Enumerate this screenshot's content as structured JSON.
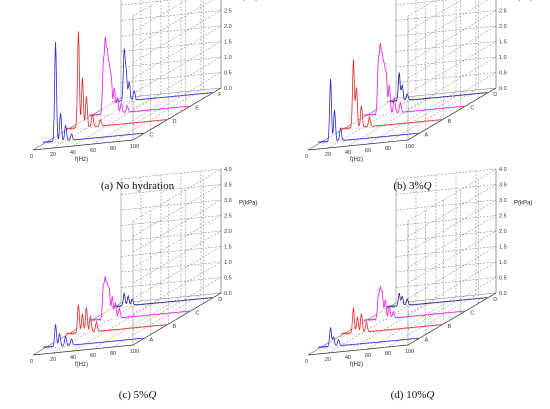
{
  "figure": {
    "z_axis_label": "P(kPa)",
    "x_axis_label": "f(Hz)",
    "z_ticks": [
      "0.0",
      "0.5",
      "1.0",
      "1.5",
      "2.0",
      "2.5",
      "3.0",
      "3.5",
      "4.0"
    ],
    "x_ticks": [
      "0",
      "20",
      "40",
      "60",
      "80",
      "100"
    ],
    "colors": {
      "blue": "#2a2ad8",
      "red": "#e22828",
      "magenta": "#e619e6",
      "navy": "#1c1c8c",
      "grid": "#777777"
    }
  },
  "chart_data": [
    {
      "type": "line",
      "panel": "a",
      "caption_prefix": "(a) No hydration",
      "caption_q": "",
      "xlabel": "f(Hz)",
      "zlabel": "P(kPa)",
      "zlim": [
        0,
        4.0
      ],
      "xlim": [
        0,
        100
      ],
      "series": [
        {
          "name": "C",
          "color": "blue",
          "peaks": [
            [
              12,
              3.2
            ],
            [
              17,
              0.9
            ],
            [
              22,
              0.5
            ],
            [
              28,
              0.2
            ]
          ]
        },
        {
          "name": "D",
          "color": "red",
          "peaks": [
            [
              12,
              3.1
            ],
            [
              16,
              1.6
            ],
            [
              20,
              1.0
            ],
            [
              26,
              0.4
            ],
            [
              34,
              0.2
            ]
          ]
        },
        {
          "name": "E",
          "color": "magenta",
          "peaks": [
            [
              14,
              1.5
            ],
            [
              16,
              2.2
            ],
            [
              18,
              1.8
            ],
            [
              20,
              1.4
            ],
            [
              22,
              1.1
            ],
            [
              25,
              0.8
            ],
            [
              28,
              0.5
            ],
            [
              32,
              0.3
            ],
            [
              38,
              0.2
            ]
          ]
        },
        {
          "name": "F",
          "color": "blue",
          "peaks": [
            [
              12,
              1.6
            ],
            [
              14,
              0.9
            ],
            [
              17,
              0.6
            ],
            [
              22,
              0.3
            ]
          ]
        }
      ]
    },
    {
      "type": "line",
      "panel": "b",
      "caption_prefix": "(b) 3%",
      "caption_q": "Q",
      "xlabel": "f(Hz)",
      "zlabel": "P(kPa)",
      "zlim": [
        0,
        4.0
      ],
      "xlim": [
        0,
        100
      ],
      "series": [
        {
          "name": "A",
          "color": "blue",
          "peaks": [
            [
              12,
              2.0
            ],
            [
              16,
              1.0
            ],
            [
              22,
              0.4
            ]
          ]
        },
        {
          "name": "B",
          "color": "red",
          "peaks": [
            [
              12,
              2.2
            ],
            [
              15,
              1.3
            ],
            [
              20,
              0.7
            ],
            [
              28,
              0.3
            ]
          ]
        },
        {
          "name": "C",
          "color": "magenta",
          "peaks": [
            [
              14,
              1.6
            ],
            [
              16,
              2.0
            ],
            [
              18,
              1.7
            ],
            [
              20,
              1.4
            ],
            [
              22,
              1.2
            ],
            [
              25,
              0.9
            ],
            [
              30,
              0.5
            ],
            [
              36,
              0.3
            ]
          ]
        },
        {
          "name": "D",
          "color": "navy",
          "peaks": [
            [
              12,
              0.9
            ],
            [
              15,
              0.5
            ],
            [
              20,
              0.2
            ]
          ]
        }
      ]
    },
    {
      "type": "line",
      "panel": "c",
      "caption_prefix": "(c) 5%",
      "caption_q": "Q",
      "xlabel": "f(Hz)",
      "zlabel": "P(kPa)",
      "zlim": [
        0,
        4.0
      ],
      "xlim": [
        0,
        100
      ],
      "series": [
        {
          "name": "A",
          "color": "blue",
          "peaks": [
            [
              12,
              0.7
            ],
            [
              16,
              0.4
            ],
            [
              22,
              0.3
            ],
            [
              28,
              0.2
            ]
          ]
        },
        {
          "name": "B",
          "color": "red",
          "peaks": [
            [
              12,
              0.9
            ],
            [
              16,
              0.6
            ],
            [
              20,
              0.8
            ],
            [
              24,
              0.5
            ],
            [
              30,
              0.3
            ]
          ]
        },
        {
          "name": "C",
          "color": "magenta",
          "peaks": [
            [
              14,
              1.0
            ],
            [
              16,
              1.2
            ],
            [
              18,
              1.0
            ],
            [
              20,
              0.9
            ],
            [
              23,
              0.7
            ],
            [
              26,
              0.5
            ],
            [
              30,
              0.3
            ]
          ]
        },
        {
          "name": "D",
          "color": "navy",
          "peaks": [
            [
              12,
              0.4
            ],
            [
              16,
              0.3
            ],
            [
              20,
              0.2
            ]
          ]
        }
      ]
    },
    {
      "type": "line",
      "panel": "d",
      "caption_prefix": "(d) 10%",
      "caption_q": "Q",
      "xlabel": "f(Hz)",
      "zlabel": "P(kPa)",
      "zlim": [
        0,
        4.0
      ],
      "xlim": [
        0,
        100
      ],
      "series": [
        {
          "name": "A",
          "color": "blue",
          "peaks": [
            [
              12,
              0.6
            ],
            [
              15,
              0.3
            ],
            [
              20,
              0.2
            ]
          ]
        },
        {
          "name": "B",
          "color": "red",
          "peaks": [
            [
              12,
              0.8
            ],
            [
              16,
              0.5
            ],
            [
              20,
              0.6
            ],
            [
              25,
              0.3
            ]
          ]
        },
        {
          "name": "C",
          "color": "magenta",
          "peaks": [
            [
              14,
              0.7
            ],
            [
              16,
              0.9
            ],
            [
              18,
              0.8
            ],
            [
              21,
              0.6
            ],
            [
              25,
              0.4
            ],
            [
              29,
              0.2
            ]
          ]
        },
        {
          "name": "D",
          "color": "navy",
          "peaks": [
            [
              12,
              0.4
            ],
            [
              15,
              0.3
            ],
            [
              20,
              0.2
            ]
          ]
        }
      ]
    }
  ]
}
